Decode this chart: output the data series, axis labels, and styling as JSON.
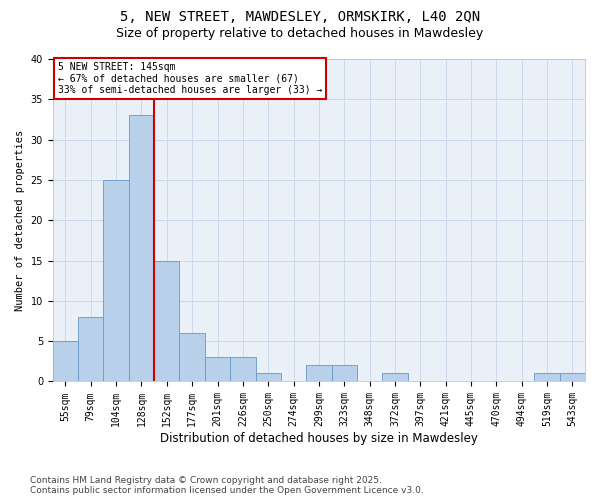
{
  "title1": "5, NEW STREET, MAWDESLEY, ORMSKIRK, L40 2QN",
  "title2": "Size of property relative to detached houses in Mawdesley",
  "xlabel": "Distribution of detached houses by size in Mawdesley",
  "ylabel": "Number of detached properties",
  "categories": [
    "55sqm",
    "79sqm",
    "104sqm",
    "128sqm",
    "152sqm",
    "177sqm",
    "201sqm",
    "226sqm",
    "250sqm",
    "274sqm",
    "299sqm",
    "323sqm",
    "348sqm",
    "372sqm",
    "397sqm",
    "421sqm",
    "445sqm",
    "470sqm",
    "494sqm",
    "519sqm",
    "543sqm"
  ],
  "values": [
    5,
    8,
    25,
    33,
    15,
    6,
    3,
    3,
    1,
    0,
    2,
    2,
    0,
    1,
    0,
    0,
    0,
    0,
    0,
    1,
    1
  ],
  "bar_color": "#b8d0ea",
  "bar_edge_color": "#6699cc",
  "bar_linewidth": 0.6,
  "red_line_x": 3.5,
  "red_line_color": "#cc0000",
  "property_label": "5 NEW STREET: 145sqm",
  "annotation_line1": "← 67% of detached houses are smaller (67)",
  "annotation_line2": "33% of semi-detached houses are larger (33) →",
  "annotation_box_color": "#ffffff",
  "annotation_box_edge": "#cc0000",
  "ylim": [
    0,
    40
  ],
  "yticks": [
    0,
    5,
    10,
    15,
    20,
    25,
    30,
    35,
    40
  ],
  "grid_color": "#ccd8ec",
  "background_color": "#eaf0f8",
  "footer1": "Contains HM Land Registry data © Crown copyright and database right 2025.",
  "footer2": "Contains public sector information licensed under the Open Government Licence v3.0.",
  "title1_fontsize": 10,
  "title2_fontsize": 9,
  "xlabel_fontsize": 8.5,
  "ylabel_fontsize": 7.5,
  "tick_fontsize": 7,
  "annotation_fontsize": 7,
  "footer_fontsize": 6.5
}
